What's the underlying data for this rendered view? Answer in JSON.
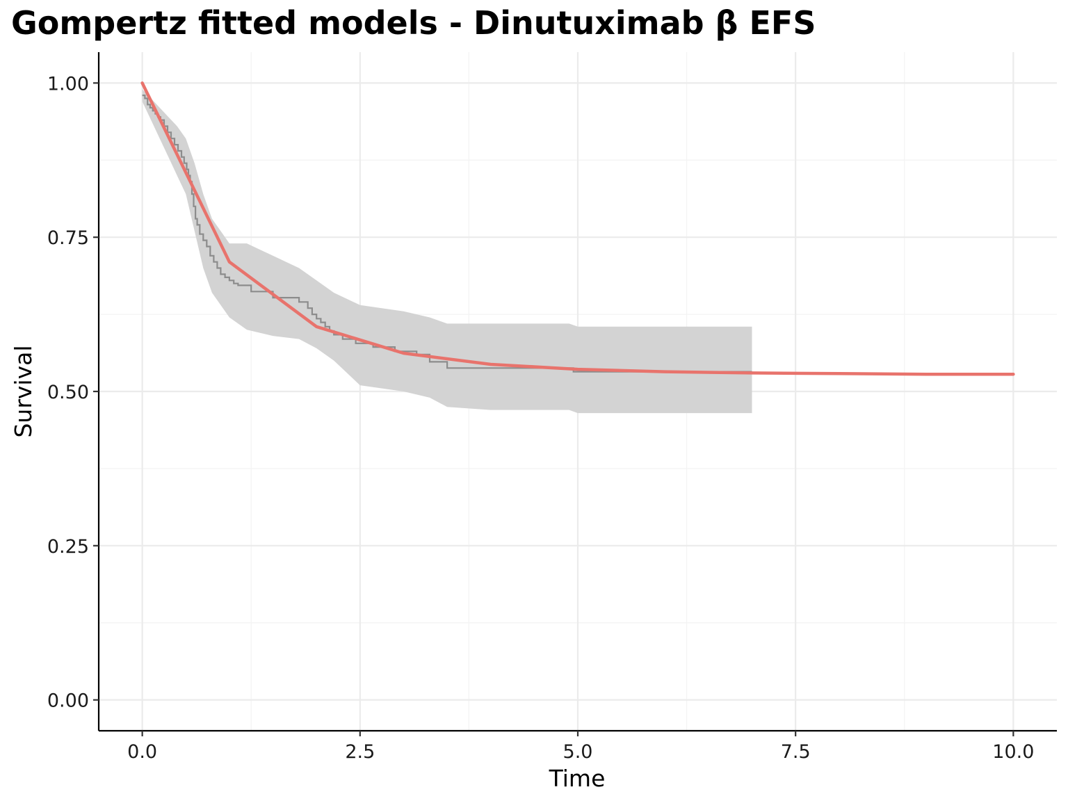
{
  "chart_data": {
    "type": "line",
    "title": "Gompertz fitted models - Dinutuximab β EFS",
    "xlabel": "Time",
    "ylabel": "Survival",
    "xlim": [
      -0.5,
      10.5
    ],
    "ylim": [
      -0.05,
      1.05
    ],
    "x_ticks": [
      "0.0",
      "2.5",
      "5.0",
      "7.5",
      "10.0"
    ],
    "y_ticks": [
      "0.00",
      "0.25",
      "0.50",
      "0.75",
      "1.00"
    ],
    "x_tick_values": [
      0,
      2.5,
      5,
      7.5,
      10
    ],
    "y_tick_values": [
      0,
      0.25,
      0.5,
      0.75,
      1
    ],
    "grid": true,
    "legend": "none",
    "colors": {
      "fit": "#e8736c",
      "km": "#8c8c8c",
      "ci": "#d3d3d3"
    },
    "series": [
      {
        "role": "gompertz-fit",
        "x": [
          0,
          1,
          2,
          3,
          4,
          5,
          6,
          7,
          8,
          9,
          10
        ],
        "y": [
          1.0,
          0.71,
          0.605,
          0.562,
          0.544,
          0.536,
          0.532,
          0.53,
          0.529,
          0.528,
          0.528
        ]
      },
      {
        "role": "kaplan-meier",
        "x": [
          0,
          0.03,
          0.06,
          0.09,
          0.12,
          0.15,
          0.18,
          0.21,
          0.25,
          0.29,
          0.33,
          0.37,
          0.41,
          0.45,
          0.48,
          0.51,
          0.53,
          0.55,
          0.57,
          0.59,
          0.61,
          0.63,
          0.66,
          0.7,
          0.74,
          0.78,
          0.82,
          0.86,
          0.9,
          0.95,
          1.0,
          1.05,
          1.1,
          1.25,
          1.5,
          1.8,
          1.9,
          1.95,
          2.0,
          2.05,
          2.1,
          2.15,
          2.2,
          2.3,
          2.45,
          2.65,
          2.9,
          3.15,
          3.3,
          3.5,
          4.0,
          4.95,
          7.0
        ],
        "y": [
          0.98,
          0.975,
          0.965,
          0.96,
          0.955,
          0.95,
          0.945,
          0.94,
          0.93,
          0.92,
          0.91,
          0.9,
          0.89,
          0.88,
          0.87,
          0.86,
          0.85,
          0.84,
          0.82,
          0.8,
          0.78,
          0.77,
          0.755,
          0.745,
          0.735,
          0.72,
          0.71,
          0.7,
          0.69,
          0.685,
          0.68,
          0.675,
          0.672,
          0.662,
          0.652,
          0.645,
          0.635,
          0.625,
          0.618,
          0.612,
          0.605,
          0.598,
          0.592,
          0.585,
          0.578,
          0.572,
          0.565,
          0.56,
          0.548,
          0.538,
          0.538,
          0.532,
          0.532
        ]
      }
    ],
    "ci_band": {
      "x": [
        0,
        0.1,
        0.2,
        0.3,
        0.4,
        0.5,
        0.6,
        0.7,
        0.8,
        0.9,
        1.0,
        1.2,
        1.5,
        1.8,
        2.0,
        2.2,
        2.5,
        3.0,
        3.3,
        3.5,
        4.0,
        4.9,
        5.0,
        7.0
      ],
      "upper": [
        0.99,
        0.975,
        0.96,
        0.945,
        0.93,
        0.91,
        0.87,
        0.82,
        0.78,
        0.76,
        0.74,
        0.74,
        0.72,
        0.7,
        0.68,
        0.66,
        0.64,
        0.63,
        0.62,
        0.61,
        0.61,
        0.61,
        0.605,
        0.605
      ],
      "lower": [
        0.97,
        0.94,
        0.91,
        0.88,
        0.85,
        0.82,
        0.76,
        0.7,
        0.66,
        0.64,
        0.62,
        0.6,
        0.59,
        0.585,
        0.57,
        0.55,
        0.51,
        0.5,
        0.49,
        0.475,
        0.47,
        0.47,
        0.465,
        0.465
      ]
    }
  }
}
